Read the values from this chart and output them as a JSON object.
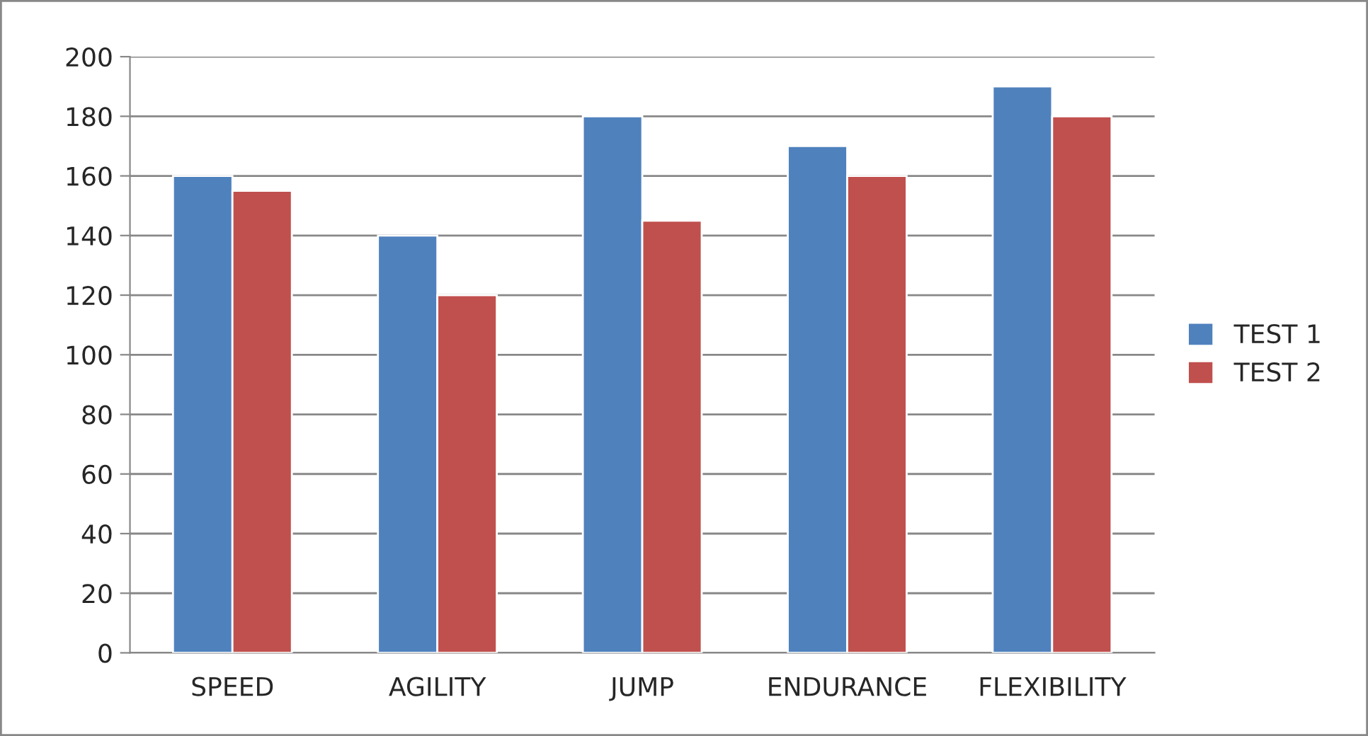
{
  "chart_data": {
    "type": "bar",
    "categories": [
      "SPEED",
      "AGILITY",
      "JUMP",
      "ENDURANCE",
      "FLEXIBILITY"
    ],
    "series": [
      {
        "name": "TEST 1",
        "color": "#4f81bd",
        "values": [
          160,
          140,
          180,
          170,
          190
        ]
      },
      {
        "name": "TEST 2",
        "color": "#c0504d",
        "values": [
          155,
          120,
          145,
          160,
          180
        ]
      }
    ],
    "ylim": [
      0,
      200
    ],
    "yticks": [
      0,
      20,
      40,
      60,
      80,
      100,
      120,
      140,
      160,
      180,
      200
    ],
    "grid": "y",
    "legend": "right"
  }
}
